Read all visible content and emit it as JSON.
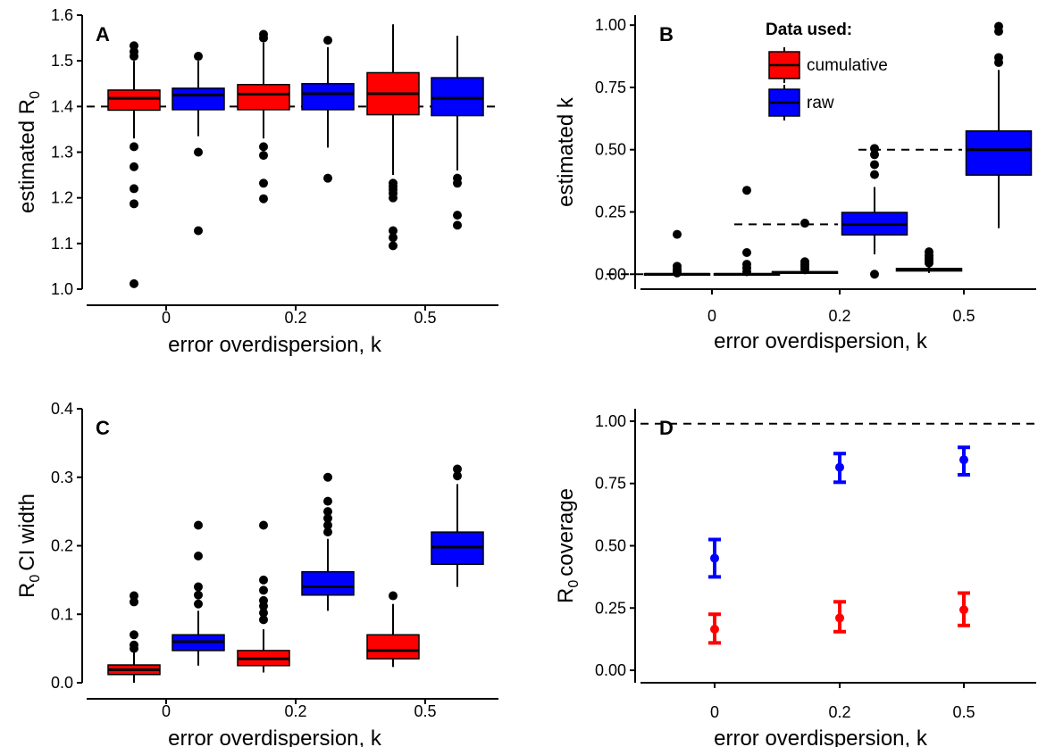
{
  "legend": {
    "title": "Data used:",
    "entries": [
      {
        "label": "cumulative",
        "color": "#ff0000"
      },
      {
        "label": "raw",
        "color": "#0000ff"
      }
    ]
  },
  "chart_data": [
    {
      "panel": "A",
      "type": "box",
      "xlabel": "error overdispersion, k",
      "ylabel_main": "estimated R",
      "ylabel_sub": "0",
      "categories": [
        "0",
        "0.2",
        "0.5"
      ],
      "ylim": [
        1.0,
        1.6
      ],
      "yticks": [
        "1.0",
        "1.1",
        "1.2",
        "1.3",
        "1.4",
        "1.5",
        "1.6"
      ],
      "reference_line": 1.4,
      "series": [
        {
          "name": "cumulative",
          "color": "#ff0000",
          "boxes": [
            {
              "whisker_low": 1.33,
              "q1": 1.392,
              "median": 1.418,
              "q3": 1.436,
              "whisker_high": 1.5,
              "outliers": [
                1.533,
                1.52,
                1.51,
                1.312,
                1.268,
                1.22,
                1.187,
                1.012
              ]
            },
            {
              "whisker_low": 1.33,
              "q1": 1.393,
              "median": 1.427,
              "q3": 1.448,
              "whisker_high": 1.54,
              "outliers": [
                1.558,
                1.55,
                1.312,
                1.293,
                1.232,
                1.198
              ]
            },
            {
              "whisker_low": 1.25,
              "q1": 1.382,
              "median": 1.428,
              "q3": 1.474,
              "whisker_high": 1.58,
              "outliers": [
                1.232,
                1.225,
                1.218,
                1.21,
                1.2,
                1.128,
                1.113,
                1.095
              ]
            }
          ]
        },
        {
          "name": "raw",
          "color": "#0000ff",
          "boxes": [
            {
              "whisker_low": 1.335,
              "q1": 1.393,
              "median": 1.425,
              "q3": 1.44,
              "whisker_high": 1.5,
              "outliers": [
                1.51,
                1.3,
                1.128
              ]
            },
            {
              "whisker_low": 1.31,
              "q1": 1.393,
              "median": 1.428,
              "q3": 1.45,
              "whisker_high": 1.53,
              "outliers": [
                1.545,
                1.243
              ]
            },
            {
              "whisker_low": 1.26,
              "q1": 1.38,
              "median": 1.418,
              "q3": 1.463,
              "whisker_high": 1.555,
              "outliers": [
                1.243,
                1.232,
                1.162,
                1.14
              ]
            }
          ]
        }
      ]
    },
    {
      "panel": "B",
      "type": "box",
      "xlabel": "error overdispersion, k",
      "ylabel_main": "estimated k",
      "categories": [
        "0",
        "0.2",
        "0.5"
      ],
      "ylim": [
        -0.06,
        1.04
      ],
      "yticks": [
        "0.00",
        "0.25",
        "0.50",
        "0.75",
        "1.00"
      ],
      "true_values": [
        0.0,
        0.2,
        0.5
      ],
      "series": [
        {
          "name": "cumulative",
          "color": "#ff0000",
          "boxes": [
            {
              "whisker_low": 0.0,
              "q1": 0.0,
              "median": 0.0,
              "q3": 0.002,
              "whisker_high": 0.004,
              "outliers": [
                0.16,
                0.032,
                0.02,
                0.01,
                0.005
              ]
            },
            {
              "whisker_low": 0.0,
              "q1": 0.004,
              "median": 0.007,
              "q3": 0.01,
              "whisker_high": 0.014,
              "outliers": [
                0.205,
                0.05,
                0.04,
                0.03,
                0.02
              ]
            },
            {
              "whisker_low": 0.005,
              "q1": 0.013,
              "median": 0.018,
              "q3": 0.023,
              "whisker_high": 0.035,
              "outliers": [
                0.09,
                0.075,
                0.065,
                0.055,
                0.045
              ]
            }
          ]
        },
        {
          "name": "raw",
          "color": "#0000ff",
          "boxes": [
            {
              "whisker_low": 0.0,
              "q1": 0.0,
              "median": 0.0,
              "q3": 0.002,
              "whisker_high": 0.004,
              "outliers": [
                0.337,
                0.087,
                0.04,
                0.025,
                0.01
              ]
            },
            {
              "whisker_low": 0.08,
              "q1": 0.158,
              "median": 0.2,
              "q3": 0.248,
              "whisker_high": 0.35,
              "outliers": [
                0.505,
                0.48,
                0.44,
                0.4,
                0.0
              ]
            },
            {
              "whisker_low": 0.185,
              "q1": 0.398,
              "median": 0.5,
              "q3": 0.575,
              "whisker_high": 0.82,
              "outliers": [
                0.995,
                0.975,
                0.87,
                0.85
              ]
            }
          ]
        }
      ]
    },
    {
      "panel": "C",
      "type": "box",
      "xlabel": "error overdispersion, k",
      "ylabel_main": "CI width",
      "ylabel_sub": "0",
      "ylabel_prefix": "R",
      "categories": [
        "0",
        "0.2",
        "0.5"
      ],
      "ylim": [
        0.0,
        0.4
      ],
      "yticks": [
        "0.0",
        "0.1",
        "0.2",
        "0.3",
        "0.4"
      ],
      "series": [
        {
          "name": "cumulative",
          "color": "#ff0000",
          "boxes": [
            {
              "whisker_low": 0.0,
              "q1": 0.012,
              "median": 0.019,
              "q3": 0.026,
              "whisker_high": 0.045,
              "outliers": [
                0.127,
                0.118,
                0.07,
                0.055,
                0.05
              ]
            },
            {
              "whisker_low": 0.015,
              "q1": 0.025,
              "median": 0.035,
              "q3": 0.047,
              "whisker_high": 0.078,
              "outliers": [
                0.23,
                0.15,
                0.135,
                0.12,
                0.112,
                0.102,
                0.092
              ]
            },
            {
              "whisker_low": 0.023,
              "q1": 0.035,
              "median": 0.047,
              "q3": 0.07,
              "whisker_high": 0.115,
              "outliers": [
                0.127
              ]
            }
          ]
        },
        {
          "name": "raw",
          "color": "#0000ff",
          "boxes": [
            {
              "whisker_low": 0.025,
              "q1": 0.047,
              "median": 0.06,
              "q3": 0.07,
              "whisker_high": 0.105,
              "outliers": [
                0.23,
                0.185,
                0.14,
                0.128,
                0.115
              ]
            },
            {
              "whisker_low": 0.105,
              "q1": 0.128,
              "median": 0.14,
              "q3": 0.162,
              "whisker_high": 0.21,
              "outliers": [
                0.3,
                0.265,
                0.25,
                0.24,
                0.23,
                0.22
              ]
            },
            {
              "whisker_low": 0.14,
              "q1": 0.173,
              "median": 0.198,
              "q3": 0.22,
              "whisker_high": 0.29,
              "outliers": [
                0.312,
                0.302
              ]
            }
          ]
        }
      ]
    },
    {
      "panel": "D",
      "type": "errorbar",
      "xlabel": "error overdispersion, k",
      "ylabel_main": "coverage",
      "ylabel_sub": "0",
      "ylabel_prefix": "R",
      "categories": [
        "0",
        "0.2",
        "0.5"
      ],
      "ylim": [
        -0.05,
        1.05
      ],
      "yticks": [
        "0.00",
        "0.25",
        "0.50",
        "0.75",
        "1.00"
      ],
      "reference_line": 0.99,
      "series": [
        {
          "name": "cumulative",
          "color": "#ff0000",
          "points": [
            {
              "estimate": 0.165,
              "low": 0.11,
              "high": 0.225
            },
            {
              "estimate": 0.21,
              "low": 0.155,
              "high": 0.275
            },
            {
              "estimate": 0.243,
              "low": 0.18,
              "high": 0.31
            }
          ]
        },
        {
          "name": "raw",
          "color": "#0000ff",
          "points": [
            {
              "estimate": 0.45,
              "low": 0.375,
              "high": 0.525
            },
            {
              "estimate": 0.815,
              "low": 0.755,
              "high": 0.87
            },
            {
              "estimate": 0.845,
              "low": 0.785,
              "high": 0.895
            }
          ]
        }
      ]
    }
  ]
}
